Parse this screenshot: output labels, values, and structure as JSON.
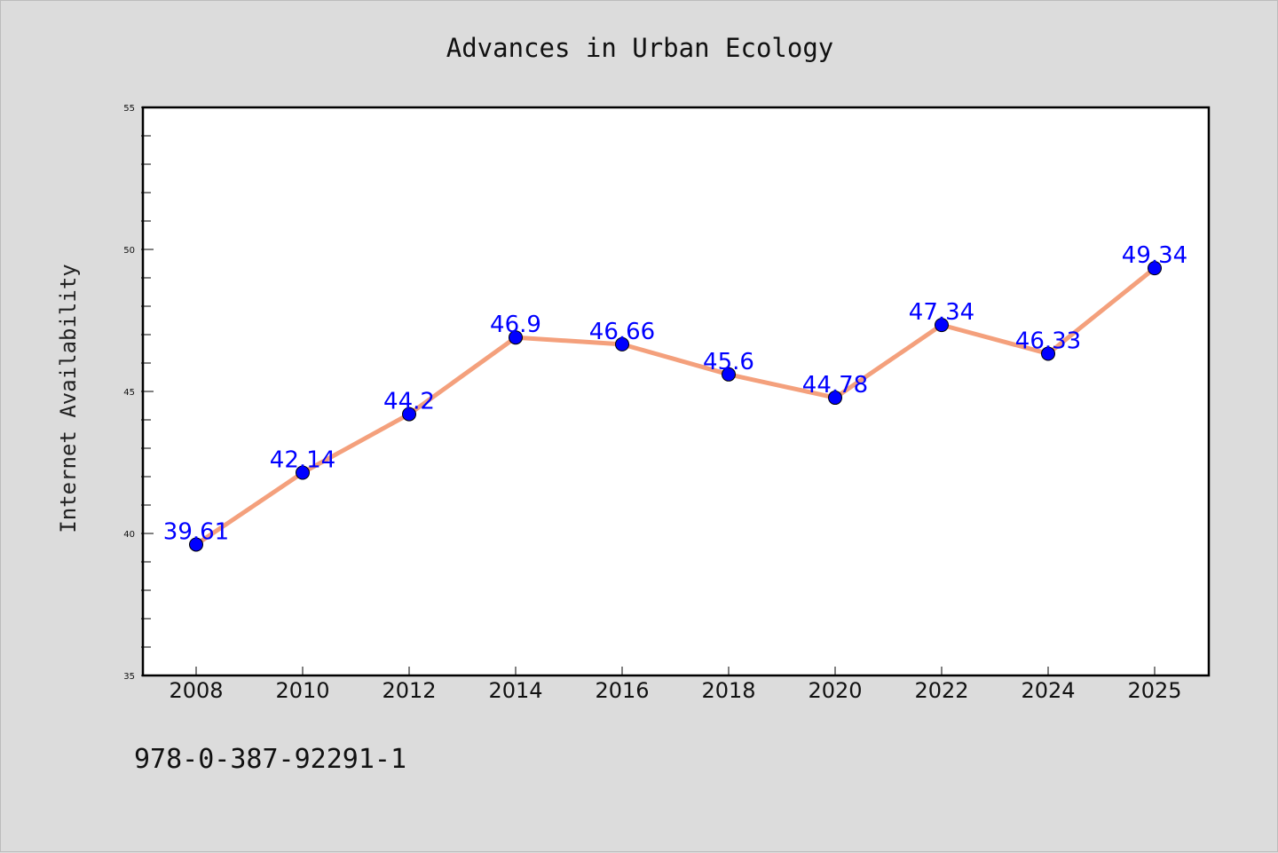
{
  "chart_data": {
    "type": "line",
    "title": "Advances in Urban Ecology",
    "xlabel": "",
    "ylabel": "Internet Availability",
    "categories": [
      "2008",
      "2010",
      "2012",
      "2014",
      "2016",
      "2018",
      "2020",
      "2022",
      "2024",
      "2025"
    ],
    "series": [
      {
        "values": [
          39.61,
          42.14,
          44.2,
          46.9,
          46.66,
          45.6,
          44.78,
          47.34,
          46.33,
          49.34
        ],
        "labels": [
          "39.61",
          "42.14",
          "44.2",
          "46.9",
          "46.66",
          "45.6",
          "44.78",
          "47.34",
          "46.33",
          "49.34"
        ],
        "line_color": "#f4a07c",
        "marker_color": "#0000ff"
      }
    ],
    "ylim": [
      35,
      55
    ],
    "yticks": [
      35,
      40,
      45,
      50,
      55
    ],
    "ytick_labels": [
      "35",
      "40",
      "45",
      "50",
      "55"
    ],
    "grid": false,
    "legend": "none"
  },
  "footer": {
    "isbn": "978-0-387-92291-1"
  }
}
